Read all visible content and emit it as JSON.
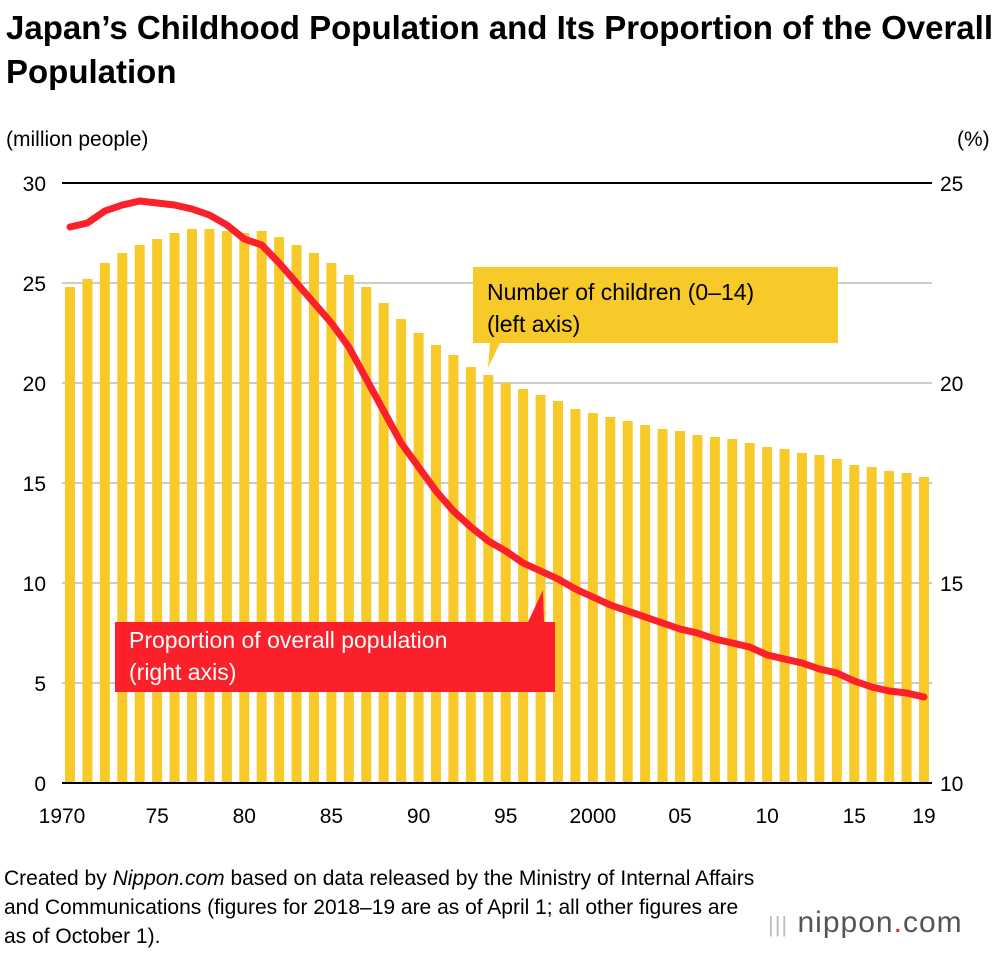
{
  "title": "Japan’s Childhood Population and Its Proportion of the Overall Population",
  "left_unit": "(million people)",
  "right_unit": "(%)",
  "footer": {
    "prefix": "Created by ",
    "source": "Nippon.com",
    "suffix": " based on data released by the Ministry of Internal Affairs and Communications (figures for 2018–19 are as of April 1; all other figures are as of October 1)."
  },
  "logo": {
    "name": "nippon",
    "dot": ".",
    "tld": "com"
  },
  "colors": {
    "bars": "#f7ca2a",
    "line": "#fb2029",
    "grid": "#cccccc"
  },
  "chart_data": {
    "type": "bar+line",
    "title": "Japan’s Childhood Population and Its Proportion of the Overall Population",
    "x": [
      1970,
      1971,
      1972,
      1973,
      1974,
      1975,
      1976,
      1977,
      1978,
      1979,
      1980,
      1981,
      1982,
      1983,
      1984,
      1985,
      1986,
      1987,
      1988,
      1989,
      1990,
      1991,
      1992,
      1993,
      1994,
      1995,
      1996,
      1997,
      1998,
      1999,
      2000,
      2001,
      2002,
      2003,
      2004,
      2005,
      2006,
      2007,
      2008,
      2009,
      2010,
      2011,
      2012,
      2013,
      2014,
      2015,
      2016,
      2017,
      2018,
      2019
    ],
    "x_tick_labels": [
      {
        "year": 1970,
        "label": "1970"
      },
      {
        "year": 1975,
        "label": "75"
      },
      {
        "year": 1980,
        "label": "80"
      },
      {
        "year": 1985,
        "label": "85"
      },
      {
        "year": 1990,
        "label": "90"
      },
      {
        "year": 1995,
        "label": "95"
      },
      {
        "year": 2000,
        "label": "2000"
      },
      {
        "year": 2005,
        "label": "05"
      },
      {
        "year": 2010,
        "label": "10"
      },
      {
        "year": 2015,
        "label": "15"
      },
      {
        "year": 2019,
        "label": "19"
      }
    ],
    "series": [
      {
        "name": "Number of children (0–14) (left axis)",
        "label_line1": "Number of children (0–14)",
        "label_line2": "(left axis)",
        "type": "bar",
        "axis": "left",
        "values": [
          24.8,
          25.2,
          26.0,
          26.5,
          26.9,
          27.2,
          27.5,
          27.7,
          27.7,
          27.6,
          27.5,
          27.6,
          27.3,
          26.9,
          26.5,
          26.0,
          25.4,
          24.8,
          24.0,
          23.2,
          22.5,
          21.9,
          21.4,
          20.8,
          20.4,
          20.0,
          19.7,
          19.4,
          19.1,
          18.7,
          18.5,
          18.3,
          18.1,
          17.9,
          17.7,
          17.6,
          17.4,
          17.3,
          17.2,
          17.0,
          16.8,
          16.7,
          16.5,
          16.4,
          16.2,
          15.9,
          15.8,
          15.6,
          15.5,
          15.3
        ]
      },
      {
        "name": "Proportion of overall population (right axis)",
        "label_line1": "Proportion of overall population",
        "label_line2": "(right axis)",
        "type": "line",
        "axis": "right",
        "values": [
          23.9,
          24.0,
          24.3,
          24.45,
          24.55,
          24.5,
          24.45,
          24.35,
          24.2,
          23.95,
          23.6,
          23.45,
          23.0,
          22.5,
          22.0,
          21.5,
          20.9,
          20.1,
          19.3,
          18.5,
          17.9,
          17.3,
          16.8,
          16.4,
          16.05,
          15.8,
          15.5,
          15.3,
          15.1,
          14.85,
          14.65,
          14.45,
          14.3,
          14.15,
          14.0,
          13.85,
          13.75,
          13.6,
          13.5,
          13.4,
          13.2,
          13.1,
          13.0,
          12.85,
          12.75,
          12.55,
          12.4,
          12.3,
          12.25,
          12.15
        ]
      }
    ],
    "left_axis": {
      "label": "(million people)",
      "range": [
        0,
        30
      ],
      "ticks": [
        0,
        5,
        10,
        15,
        20,
        25,
        30
      ]
    },
    "right_axis": {
      "label": "(%)",
      "range": [
        10,
        25
      ],
      "ticks": [
        10,
        15,
        20,
        25
      ]
    },
    "grid": true
  }
}
